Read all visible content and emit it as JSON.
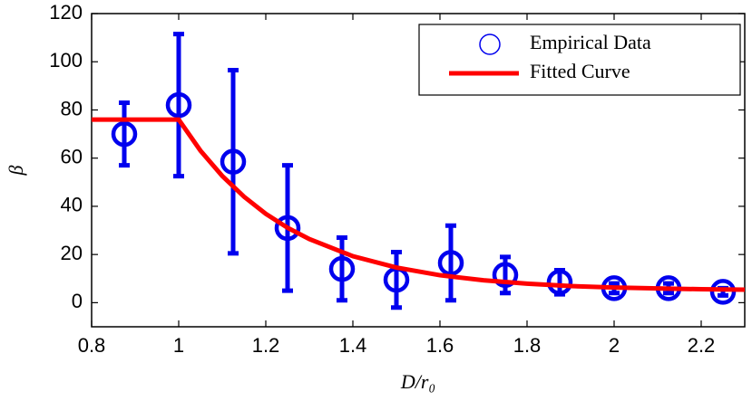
{
  "chart_data": {
    "type": "scatter",
    "xlabel": "D/r₀",
    "ylabel": "β",
    "xlim": [
      0.8,
      2.3
    ],
    "ylim": [
      -10,
      120
    ],
    "xticks": [
      0.8,
      1,
      1.2,
      1.4,
      1.6,
      1.8,
      2,
      2.2
    ],
    "yticks": [
      0,
      20,
      40,
      60,
      80,
      100,
      120
    ],
    "legend": "upper right",
    "series": [
      {
        "name": "Empirical Data",
        "color": "#0000ee",
        "type": "scatter",
        "x": [
          0.875,
          1,
          1.125,
          1.25,
          1.375,
          1.5,
          1.625,
          1.75,
          1.875,
          2,
          2.125,
          2.25
        ],
        "values": [
          70,
          82,
          58.5,
          31,
          14,
          9.5,
          16.5,
          11.5,
          8.5,
          6,
          6,
          4.5
        ],
        "errors": [
          13,
          29.5,
          38,
          26,
          13,
          11.5,
          15.5,
          7.5,
          5,
          2,
          2,
          1.5
        ]
      },
      {
        "name": "Fitted Curve",
        "color": "#ff0000",
        "type": "line",
        "x": [
          0.8,
          1,
          1.05,
          1.1,
          1.15,
          1.2,
          1.25,
          1.3,
          1.4,
          1.5,
          1.6,
          1.7,
          1.8,
          1.9,
          2.0,
          2.1,
          2.2,
          2.3
        ],
        "values": [
          76,
          76,
          63.1,
          52.6,
          44.0,
          36.9,
          31.1,
          26.4,
          19.3,
          14.6,
          11.4,
          9.3,
          7.9,
          6.9,
          6.3,
          5.9,
          5.6,
          5.4
        ]
      }
    ]
  }
}
